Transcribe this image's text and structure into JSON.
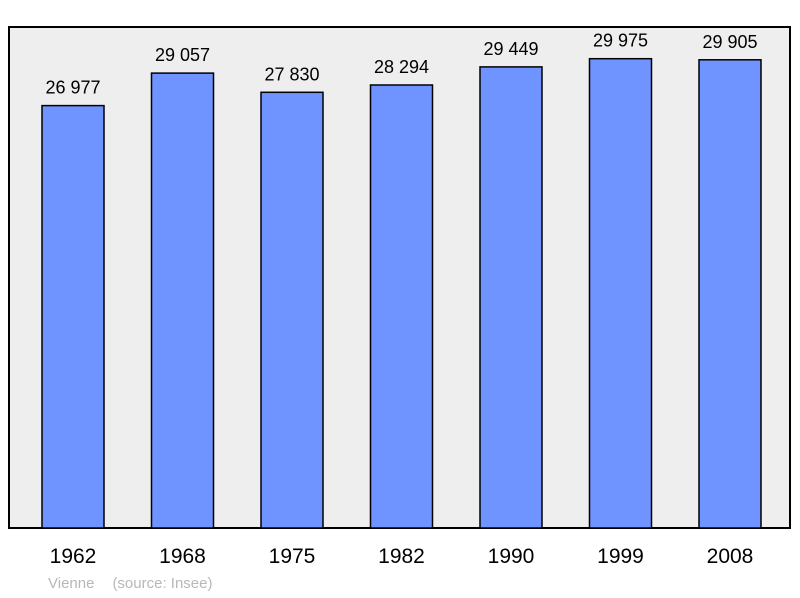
{
  "chart_data": {
    "type": "bar",
    "categories": [
      "1962",
      "1968",
      "1975",
      "1982",
      "1990",
      "1999",
      "2008"
    ],
    "values": [
      26977,
      29057,
      27830,
      28294,
      29449,
      29975,
      29905
    ],
    "data_labels": [
      "26 977",
      "29 057",
      "27 830",
      "28 294",
      "29 449",
      "29 975",
      "29 905"
    ],
    "ylim": [
      0,
      32000
    ],
    "grid": false,
    "legend": "none",
    "title": "",
    "xlabel": "",
    "ylabel": ""
  },
  "caption": {
    "place": "Vienne",
    "source": "(source: Insee)"
  },
  "colors": {
    "bar_fill": "#7094FF",
    "plot_background": "#EEEEEE",
    "frame": "#000000"
  }
}
